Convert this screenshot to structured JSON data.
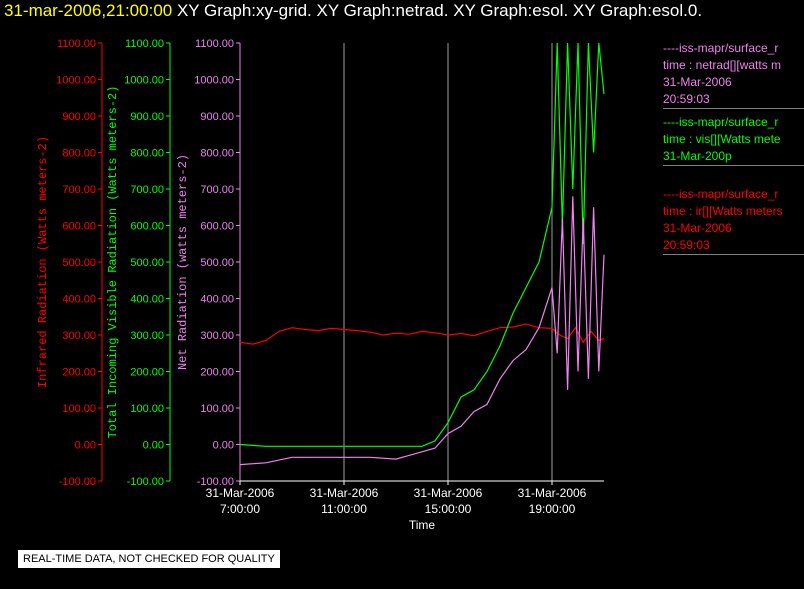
{
  "title": {
    "date": "31-mar-2006,21:00:00",
    "rest": " XY Graph:xy-grid.  XY Graph:netrad.  XY Graph:esol.  XY Graph:esol.0."
  },
  "legend": [
    {
      "line1": "----iss-mapr/surface_r",
      "line2": "time : netrad[][watts m",
      "line3": "31-Mar-2006",
      "line4": "20:59:03",
      "color": "#ee82ee"
    },
    {
      "line1": "----iss-mapr/surface_r",
      "line2": "time : vis[][Watts mete",
      "line3": "31-Mar-200p",
      "line4": "",
      "color": "#00ff00"
    },
    {
      "line1": "----iss-mapr/surface_r",
      "line2": "time : ir[][Watts meters",
      "line3": "31-Mar-2006",
      "line4": "20:59:03",
      "color": "#ff0000"
    }
  ],
  "qc_note": "REAL-TIME DATA, NOT CHECKED FOR QUALITY",
  "chart_data": {
    "type": "line",
    "xlabel": "Time",
    "x_ticks": [
      {
        "date": "31-Mar-2006",
        "time": "7:00:00",
        "hour": 7
      },
      {
        "date": "31-Mar-2006",
        "time": "11:00:00",
        "hour": 11
      },
      {
        "date": "31-Mar-2006",
        "time": "15:00:00",
        "hour": 15
      },
      {
        "date": "31-Mar-2006",
        "time": "19:00:00",
        "hour": 19
      }
    ],
    "xlim_hours": [
      7,
      21
    ],
    "grid": "vertical",
    "axes": [
      {
        "id": "ir",
        "label": "Infrared Radiation (Watts meters-2)",
        "color": "#ff0000",
        "ylim": [
          -100,
          1100
        ],
        "ticks": [
          "1100.00",
          "1000.00",
          "900.00",
          "800.00",
          "700.00",
          "600.00",
          "500.00",
          "400.00",
          "300.00",
          "200.00",
          "100.00",
          "0.00",
          "-100.00"
        ]
      },
      {
        "id": "vis",
        "label": "Total Incoming Visible Radiation (Watts meters-2)",
        "color": "#00ff00",
        "ylim": [
          -100,
          1100
        ],
        "ticks": [
          "1100.00",
          "1000.00",
          "900.00",
          "800.00",
          "700.00",
          "600.00",
          "500.00",
          "400.00",
          "300.00",
          "200.00",
          "100.00",
          "0.00",
          "-100.00"
        ]
      },
      {
        "id": "net",
        "label": "Net Radiation (watts meters-2)",
        "color": "#ee82ee",
        "ylim": [
          -100,
          1100
        ],
        "ticks": [
          "1100.00",
          "1000.00",
          "900.00",
          "800.00",
          "700.00",
          "600.00",
          "500.00",
          "400.00",
          "300.00",
          "200.00",
          "100.00",
          "0.00",
          "-100.00"
        ]
      }
    ],
    "series": [
      {
        "name": "ir",
        "color": "#ff0000",
        "x": [
          7.0,
          7.5,
          8.0,
          8.5,
          9.0,
          9.5,
          10.0,
          10.5,
          11.0,
          11.5,
          12.0,
          12.5,
          13.0,
          13.5,
          14.0,
          14.5,
          15.0,
          15.5,
          16.0,
          16.5,
          17.0,
          17.5,
          18.0,
          18.5,
          19.0,
          19.3,
          19.6,
          19.9,
          20.2,
          20.5,
          20.8,
          21.0
        ],
        "y": [
          280,
          275,
          285,
          310,
          320,
          315,
          312,
          318,
          315,
          312,
          308,
          300,
          305,
          302,
          310,
          306,
          300,
          304,
          298,
          310,
          320,
          322,
          330,
          320,
          318,
          300,
          290,
          320,
          280,
          310,
          285,
          290
        ]
      },
      {
        "name": "vis",
        "color": "#00ff00",
        "x": [
          7.0,
          8.0,
          9.0,
          10.0,
          11.0,
          12.0,
          13.0,
          14.0,
          14.5,
          15.0,
          15.5,
          16.0,
          16.5,
          17.0,
          17.5,
          18.0,
          18.5,
          19.0,
          19.2,
          19.4,
          19.6,
          19.8,
          20.0,
          20.2,
          20.4,
          20.6,
          20.8,
          21.0
        ],
        "y": [
          0,
          -5,
          -5,
          -5,
          -5,
          -5,
          -5,
          -5,
          10,
          60,
          130,
          150,
          200,
          270,
          360,
          430,
          500,
          650,
          1100,
          600,
          1100,
          700,
          1100,
          550,
          1100,
          800,
          1100,
          960
        ]
      },
      {
        "name": "net",
        "color": "#ee82ee",
        "x": [
          7.0,
          8.0,
          9.0,
          10.0,
          11.0,
          12.0,
          13.0,
          13.5,
          14.0,
          14.5,
          15.0,
          15.5,
          16.0,
          16.5,
          17.0,
          17.5,
          18.0,
          18.5,
          19.0,
          19.2,
          19.4,
          19.6,
          19.8,
          20.0,
          20.2,
          20.4,
          20.6,
          20.8,
          21.0
        ],
        "y": [
          -55,
          -50,
          -35,
          -35,
          -35,
          -35,
          -40,
          -30,
          -20,
          -10,
          30,
          50,
          90,
          110,
          180,
          230,
          260,
          320,
          430,
          250,
          620,
          150,
          680,
          200,
          620,
          180,
          650,
          200,
          520
        ]
      }
    ]
  }
}
